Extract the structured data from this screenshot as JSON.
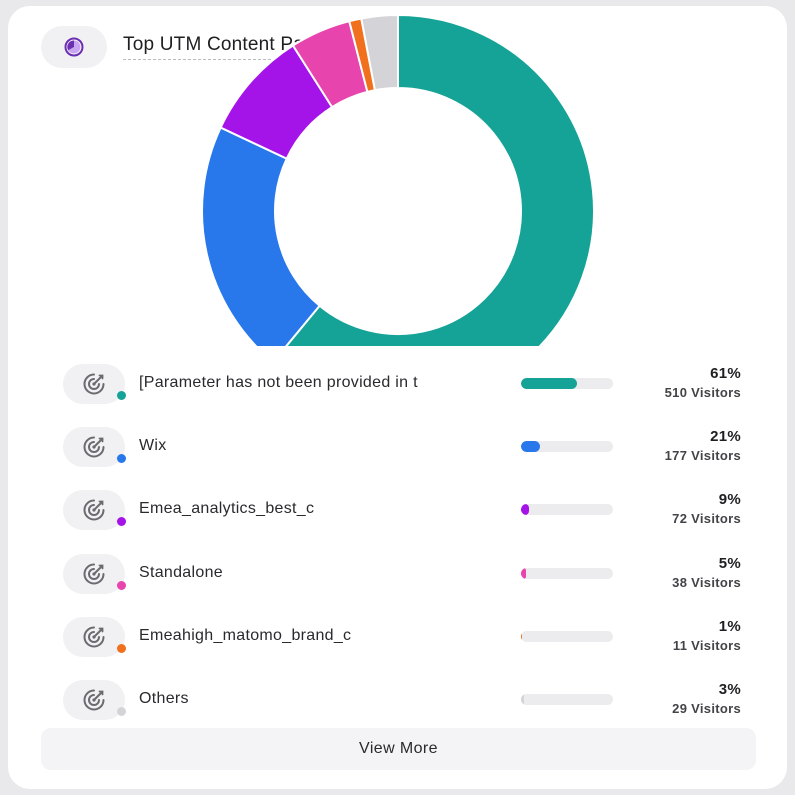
{
  "widget": {
    "title": "Top UTM Content Parameter",
    "title_icon": "pie-chart-icon",
    "row_icon": "target-icon",
    "view_more_label": "View More"
  },
  "chart_data": {
    "type": "pie",
    "title": "Top UTM Content Parameter",
    "donut": true,
    "slices": [
      {
        "label": "[Parameter has not been provided in the URL]",
        "display_label": "[Parameter has not been provided in t",
        "percent": 61,
        "percent_label": "61%",
        "visitors": 510,
        "visitors_label": "510 Visitors",
        "color": "#14a396"
      },
      {
        "label": "Wix",
        "display_label": "Wix",
        "percent": 21,
        "percent_label": "21%",
        "visitors": 177,
        "visitors_label": "177 Visitors",
        "color": "#2878ec"
      },
      {
        "label": "Emea_analytics_best_c",
        "display_label": "Emea_analytics_best_c",
        "percent": 9,
        "percent_label": "9%",
        "visitors": 72,
        "visitors_label": "72 Visitors",
        "color": "#a414e8"
      },
      {
        "label": "Standalone",
        "display_label": "Standalone",
        "percent": 5,
        "percent_label": "5%",
        "visitors": 38,
        "visitors_label": "38 Visitors",
        "color": "#e844ad"
      },
      {
        "label": "Emeahigh_matomo_brand_c",
        "display_label": "Emeahigh_matomo_brand_c",
        "percent": 1,
        "percent_label": "1%",
        "visitors": 11,
        "visitors_label": "11 Visitors",
        "color": "#f0701e"
      },
      {
        "label": "Others",
        "display_label": "Others",
        "percent": 3,
        "percent_label": "3%",
        "visitors": 29,
        "visitors_label": "29 Visitors",
        "color": "#d4d4d8"
      }
    ]
  }
}
